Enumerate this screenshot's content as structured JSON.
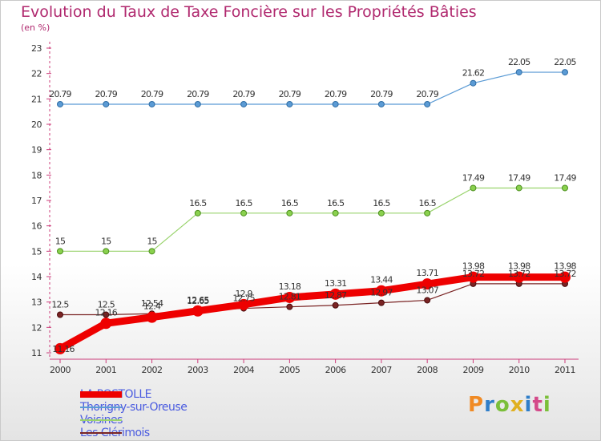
{
  "title": "Evolution du Taux de Taxe Foncière sur les Propriétés Bâties",
  "subtitle": "(en %)",
  "logo": {
    "text": "Proxiti",
    "colors": [
      "#f08a24",
      "#2f7ec9",
      "#7bbf3a",
      "#e0b021",
      "#2f7ec9",
      "#d44a8a",
      "#7bbf3a"
    ]
  },
  "chart_data": {
    "type": "line",
    "title": "Evolution du Taux de Taxe Foncière sur les Propriétés Bâties",
    "ylabel": "(en %)",
    "x": [
      "2000",
      "2001",
      "2002",
      "2003",
      "2004",
      "2005",
      "2006",
      "2007",
      "2008",
      "2009",
      "2010",
      "2011"
    ],
    "ylim": [
      11,
      23
    ],
    "yticks": [
      11,
      12,
      13,
      14,
      15,
      16,
      17,
      18,
      19,
      20,
      21,
      22,
      23
    ],
    "grid": false,
    "legend_position": "bottom-left",
    "series": [
      {
        "name": "LA POSTOLLE",
        "color": "#ee0000",
        "values": [
          11.16,
          12.16,
          12.4,
          12.65,
          12.9,
          13.18,
          13.31,
          13.44,
          13.71,
          13.98,
          13.98,
          13.98
        ],
        "labels": [
          "11.16",
          "12.16",
          "12.4",
          "12.65",
          "12.9",
          "13.18",
          "13.31",
          "13.44",
          "13.71",
          "13.98",
          "13.98",
          "13.98"
        ]
      },
      {
        "name": "Thorigny-sur-Oreuse",
        "color": "#5b9bd5",
        "values": [
          20.79,
          20.79,
          20.79,
          20.79,
          20.79,
          20.79,
          20.79,
          20.79,
          20.79,
          21.62,
          22.05,
          22.05
        ],
        "labels": [
          "20.79",
          "20.79",
          "20.79",
          "20.79",
          "20.79",
          "20.79",
          "20.79",
          "20.79",
          "20.79",
          "21.62",
          "22.05",
          "22.05"
        ]
      },
      {
        "name": "Voisines",
        "color": "#99d36c",
        "values": [
          15,
          15,
          15,
          16.5,
          16.5,
          16.5,
          16.5,
          16.5,
          16.5,
          17.49,
          17.49,
          17.49
        ],
        "labels": [
          "15",
          "15",
          "15",
          "16.5",
          "16.5",
          "16.5",
          "16.5",
          "16.5",
          "16.5",
          "17.49",
          "17.49",
          "17.49"
        ]
      },
      {
        "name": "Les Clérimois",
        "color": "#7a2424",
        "values": [
          12.5,
          12.5,
          12.54,
          12.65,
          12.75,
          12.81,
          12.87,
          12.97,
          13.07,
          13.72,
          13.72,
          13.72
        ],
        "labels": [
          "12.5",
          "12.5",
          "12.54",
          "12.65",
          "12.75",
          "12.81",
          "12.87",
          "12.97",
          "13.07",
          "13.72",
          "13.72",
          "13.72"
        ]
      }
    ]
  }
}
